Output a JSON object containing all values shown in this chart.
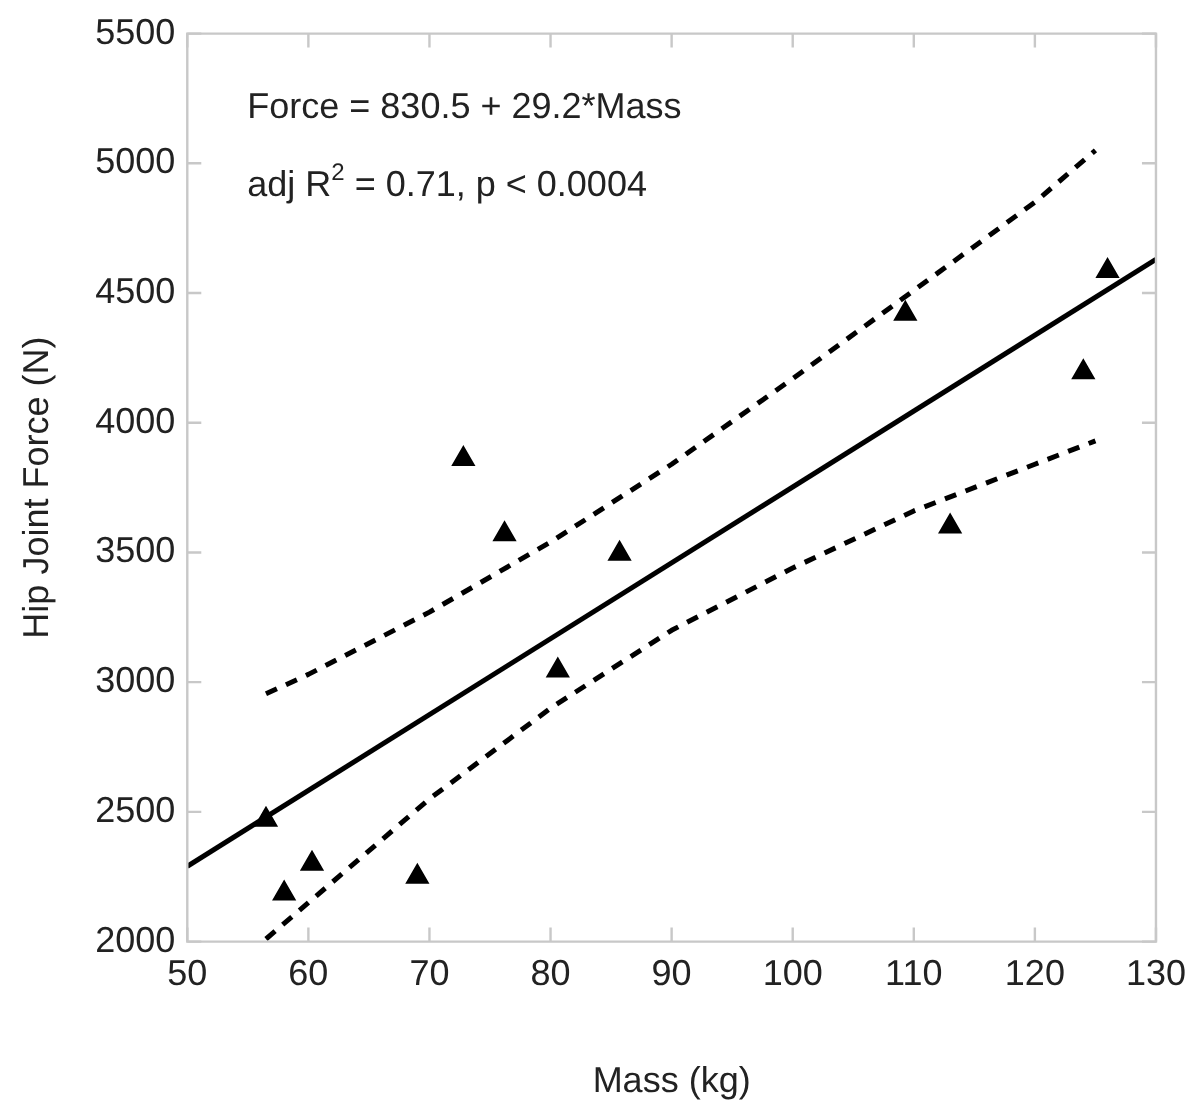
{
  "chart_data": {
    "type": "scatter",
    "xlabel": "Mass (kg)",
    "ylabel": "Hip Joint Force (N)",
    "annotations": [
      "Force = 830.5 + 29.2*Mass",
      "adj R$^{2}$ = 0.71, p < 0.0004"
    ],
    "xlim": [
      50,
      130
    ],
    "xticks": [
      50,
      60,
      70,
      80,
      90,
      100,
      110,
      120,
      130
    ],
    "ylim": [
      2000,
      5500
    ],
    "yticks": [
      2000,
      2500,
      3000,
      3500,
      4000,
      4500,
      5000,
      5500
    ],
    "grid": false,
    "legend": false,
    "marker": "triangle",
    "series": [
      {
        "color": "#000000",
        "x": [
          56.5,
          58,
          60.3,
          69,
          72.8,
          76.2,
          80.6,
          85.7,
          109.3,
          113,
          124,
          126
        ],
        "values": [
          2470,
          2185,
          2300,
          2250,
          3860,
          3570,
          3045,
          3495,
          4420,
          3600,
          4195,
          4585
        ]
      },
      {
        "type": "line",
        "color": "#000000",
        "marker": "none",
        "line_style": "solid",
        "x": [
          50,
          130
        ],
        "values": [
          2290,
          4630
        ]
      },
      {
        "type": "line",
        "color": "#000000",
        "marker": "none",
        "line_style": "dashed",
        "x": [
          56.5,
          60,
          70,
          80,
          90,
          100,
          110,
          120,
          125
        ],
        "values": [
          2955,
          3030,
          3270,
          3540,
          3840,
          4170,
          4510,
          4850,
          5050
        ]
      },
      {
        "type": "line",
        "color": "#000000",
        "marker": "none",
        "line_style": "dashed",
        "x": [
          56.5,
          60,
          70,
          80,
          90,
          100,
          110,
          120,
          125
        ],
        "values": [
          2010,
          2150,
          2550,
          2900,
          3200,
          3440,
          3660,
          3840,
          3930
        ]
      }
    ]
  }
}
